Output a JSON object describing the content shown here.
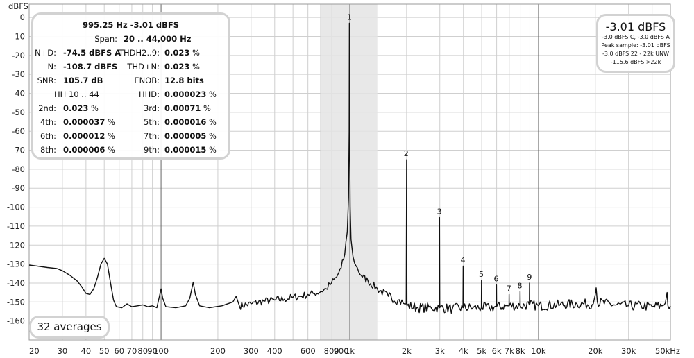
{
  "chart_data": {
    "type": "line",
    "ylabel": "dBFS",
    "xlabel": "",
    "x_scale": "log",
    "xlim": [
      20,
      50000
    ],
    "ylim": [
      -170,
      7
    ],
    "y_ticks": [
      0,
      -10,
      -20,
      -30,
      -40,
      -50,
      -60,
      -70,
      -80,
      -90,
      -100,
      -110,
      -120,
      -130,
      -140,
      -150,
      -160
    ],
    "x_ticks": [
      {
        "v": 20,
        "label": "20"
      },
      {
        "v": 30,
        "label": "30"
      },
      {
        "v": 40,
        "label": "40"
      },
      {
        "v": 50,
        "label": "50"
      },
      {
        "v": 60,
        "label": "60"
      },
      {
        "v": 70,
        "label": "70"
      },
      {
        "v": 80,
        "label": "80"
      },
      {
        "v": 90,
        "label": "90"
      },
      {
        "v": 100,
        "label": "100"
      },
      {
        "v": 200,
        "label": "200"
      },
      {
        "v": 300,
        "label": "300"
      },
      {
        "v": 400,
        "label": "400"
      },
      {
        "v": 600,
        "label": "600"
      },
      {
        "v": 800,
        "label": "800"
      },
      {
        "v": 900,
        "label": "900"
      },
      {
        "v": 1000,
        "label": "1k"
      },
      {
        "v": 2000,
        "label": "2k"
      },
      {
        "v": 3000,
        "label": "3k"
      },
      {
        "v": 4000,
        "label": "4k"
      },
      {
        "v": 5000,
        "label": "5k"
      },
      {
        "v": 6000,
        "label": "6k"
      },
      {
        "v": 7000,
        "label": "7k"
      },
      {
        "v": 8000,
        "label": "8k"
      },
      {
        "v": 10000,
        "label": "10k"
      },
      {
        "v": 20000,
        "label": "20k"
      },
      {
        "v": 30000,
        "label": "30k"
      },
      {
        "v": 50000,
        "label": "50kHz"
      }
    ],
    "grid": true,
    "highlight_band": [
      700,
      1400
    ],
    "series": [
      {
        "color": "#111111",
        "points": [
          [
            20,
            -130.5
          ],
          [
            22,
            -131
          ],
          [
            25,
            -131.8
          ],
          [
            28,
            -132.3
          ],
          [
            30,
            -133.5
          ],
          [
            33,
            -136
          ],
          [
            36,
            -139
          ],
          [
            38,
            -142
          ],
          [
            40,
            -145.5
          ],
          [
            42,
            -146
          ],
          [
            44,
            -143
          ],
          [
            46,
            -137
          ],
          [
            48,
            -130
          ],
          [
            50,
            -127
          ],
          [
            52,
            -130
          ],
          [
            54,
            -140
          ],
          [
            56,
            -149
          ],
          [
            58,
            -152.5
          ],
          [
            62,
            -153
          ],
          [
            66,
            -151
          ],
          [
            70,
            -152.5
          ],
          [
            75,
            -152
          ],
          [
            80,
            -151.5
          ],
          [
            85,
            -152.5
          ],
          [
            90,
            -152
          ],
          [
            95,
            -153
          ],
          [
            98,
            -147
          ],
          [
            100,
            -143
          ],
          [
            102,
            -148
          ],
          [
            106,
            -152.5
          ],
          [
            120,
            -153
          ],
          [
            135,
            -152
          ],
          [
            142,
            -148
          ],
          [
            148,
            -139.5
          ],
          [
            152,
            -146
          ],
          [
            160,
            -152
          ],
          [
            180,
            -153
          ],
          [
            210,
            -152
          ],
          [
            240,
            -150
          ],
          [
            250,
            -147
          ],
          [
            260,
            -152
          ],
          [
            300,
            -151
          ],
          [
            350,
            -149.5
          ],
          [
            400,
            -149
          ],
          [
            450,
            -148.5
          ],
          [
            500,
            -147.5
          ],
          [
            550,
            -147
          ],
          [
            600,
            -146
          ],
          [
            650,
            -145.5
          ],
          [
            700,
            -144.5
          ],
          [
            750,
            -143
          ],
          [
            800,
            -140
          ],
          [
            850,
            -137
          ],
          [
            900,
            -132
          ],
          [
            940,
            -125
          ],
          [
            970,
            -113
          ],
          [
            985,
            -95
          ],
          [
            992,
            -60
          ],
          [
            995.25,
            -3.01
          ],
          [
            998,
            -60
          ],
          [
            1005,
            -100
          ],
          [
            1015,
            -117
          ],
          [
            1040,
            -126
          ],
          [
            1080,
            -131
          ],
          [
            1150,
            -136
          ],
          [
            1250,
            -139
          ],
          [
            1400,
            -143
          ],
          [
            1600,
            -147
          ],
          [
            1800,
            -149
          ],
          [
            1950,
            -151
          ],
          [
            1990,
            -151
          ],
          [
            2000,
            -75
          ],
          [
            2010,
            -152
          ],
          [
            2300,
            -153
          ],
          [
            2700,
            -153
          ],
          [
            2980,
            -153
          ],
          [
            2990,
            -105.5
          ],
          [
            3000,
            -153
          ],
          [
            3500,
            -153.5
          ],
          [
            3980,
            -153
          ],
          [
            3990,
            -131
          ],
          [
            4000,
            -153
          ],
          [
            4500,
            -153
          ],
          [
            4980,
            -153
          ],
          [
            4990,
            -138.5
          ],
          [
            5000,
            -153
          ],
          [
            5500,
            -153
          ],
          [
            5980,
            -152.5
          ],
          [
            5990,
            -141
          ],
          [
            6000,
            -152.5
          ],
          [
            6980,
            -152
          ],
          [
            6990,
            -146
          ],
          [
            7000,
            -152
          ],
          [
            7980,
            -152
          ],
          [
            7990,
            -144.5
          ],
          [
            8000,
            -152
          ],
          [
            8950,
            -151.5
          ],
          [
            8960,
            -140
          ],
          [
            8970,
            -151.5
          ],
          [
            10000,
            -152
          ],
          [
            13000,
            -151.5
          ],
          [
            16000,
            -151
          ],
          [
            19500,
            -151
          ],
          [
            20000,
            -146
          ],
          [
            20200,
            -142.5
          ],
          [
            20500,
            -150
          ],
          [
            25000,
            -151.5
          ],
          [
            30000,
            -152
          ],
          [
            35000,
            -152
          ],
          [
            40000,
            -152.5
          ],
          [
            45000,
            -152
          ],
          [
            47000,
            -150.5
          ],
          [
            48000,
            -145
          ],
          [
            48500,
            -152
          ],
          [
            50000,
            -152
          ]
        ]
      }
    ],
    "annotations": [
      {
        "label": "1",
        "x": 995.25,
        "y": -3.01
      },
      {
        "label": "2",
        "x": 1990,
        "y": -75
      },
      {
        "label": "3",
        "x": 2985,
        "y": -105.5
      },
      {
        "label": "4",
        "x": 3980,
        "y": -131
      },
      {
        "label": "5",
        "x": 4975,
        "y": -138.5
      },
      {
        "label": "6",
        "x": 5970,
        "y": -141
      },
      {
        "label": "7",
        "x": 6965,
        "y": -146
      },
      {
        "label": "8",
        "x": 7960,
        "y": -144.5
      },
      {
        "label": "9",
        "x": 8955,
        "y": -140
      }
    ]
  },
  "stats": {
    "header1": "995.25 Hz  -3.01 dBFS",
    "span_label": "Span:",
    "span_value": "20 .. 44,000 Hz",
    "rows": [
      {
        "l1": "N+D:",
        "v1": "-74.5 dBFS A",
        "u1": "",
        "l2": "THDH2..9:",
        "v2": "0.023",
        "u2": " %"
      },
      {
        "l1": "N:",
        "v1": "-108.7 dBFS",
        "u1": "",
        "l2": "THD+N:",
        "v2": "0.023",
        "u2": " %"
      },
      {
        "l1": "SNR:",
        "v1": "105.7 dB",
        "u1": "",
        "l2": "ENOB:",
        "v2": "12.8 bits",
        "u2": ""
      },
      {
        "l1": "HH 10 .. 44",
        "v1": "",
        "u1": "",
        "l2": "HHD:",
        "v2": "0.000023",
        "u2": " %"
      },
      {
        "l1": "2nd:",
        "v1": "0.023",
        "u1": " %",
        "l2": "3rd:",
        "v2": "0.00071",
        "u2": " %"
      },
      {
        "l1": "4th:",
        "v1": "0.000037",
        "u1": " %",
        "l2": "5th:",
        "v2": "0.000016",
        "u2": " %"
      },
      {
        "l1": "6th:",
        "v1": "0.000012",
        "u1": " %",
        "l2": "7th:",
        "v2": "0.000005",
        "u2": " %"
      },
      {
        "l1": "8th:",
        "v1": "0.000006",
        "u1": " %",
        "l2": "9th:",
        "v2": "0.000015",
        "u2": " %"
      }
    ]
  },
  "level": {
    "big": "-3.01 dBFS",
    "lines": [
      "-3.0 dBFS C, -3.0 dBFS A",
      "Peak sample: -3.01 dBFS",
      "-3.0 dBFS 22 - 22k UNW",
      "-115.6 dBFS >22k"
    ]
  },
  "averages_label": "32 averages"
}
